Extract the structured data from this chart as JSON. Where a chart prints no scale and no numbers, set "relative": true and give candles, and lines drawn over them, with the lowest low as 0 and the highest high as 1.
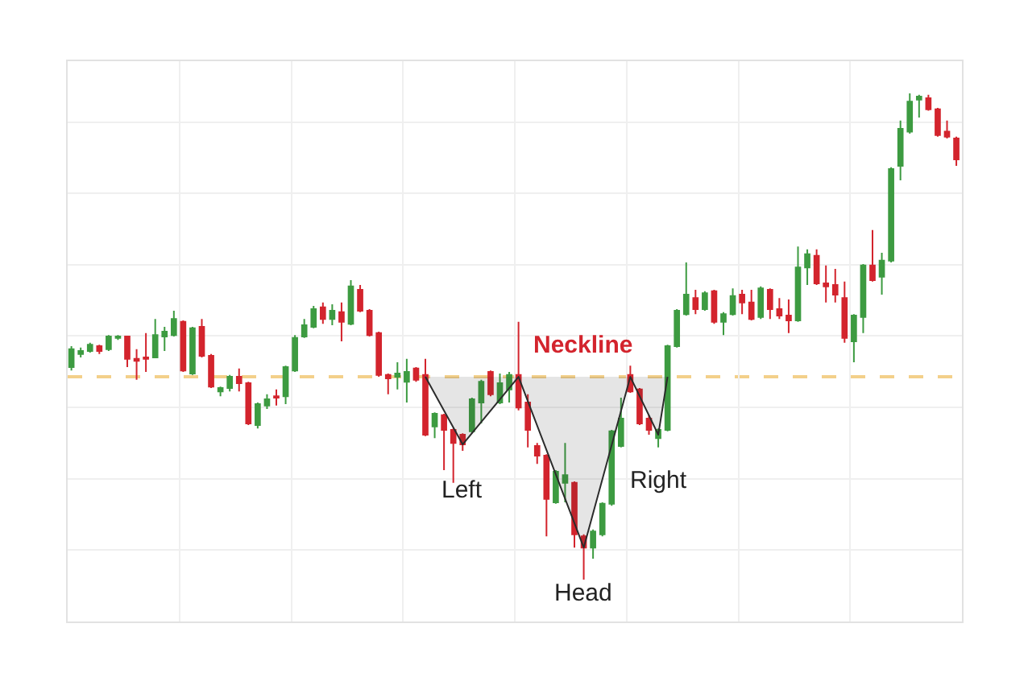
{
  "chart_data": {
    "type": "candlestick",
    "relative": true,
    "categories": [
      null,
      null,
      null,
      null,
      null,
      null,
      null,
      null,
      null,
      null,
      null,
      null,
      null,
      null,
      null,
      null,
      null,
      null,
      null,
      null,
      null,
      null,
      null,
      null,
      null,
      null,
      null,
      null,
      null,
      null,
      null,
      null,
      null,
      null,
      null,
      null,
      null,
      null,
      null,
      null,
      null,
      null,
      null,
      null,
      null,
      null,
      null,
      null,
      null,
      null,
      null,
      null,
      null,
      null,
      null,
      null,
      null,
      null,
      null,
      null,
      null,
      null,
      null,
      null,
      null,
      null,
      null,
      null,
      null,
      null,
      null,
      null,
      null,
      null,
      null,
      null,
      null,
      null,
      null,
      null,
      null,
      null,
      null,
      null,
      null,
      null,
      null,
      null,
      null,
      null,
      null,
      null,
      null,
      null,
      null,
      null
    ],
    "ohlc": [
      [
        0.437,
        0.48,
        0.43,
        0.474
      ],
      [
        0.464,
        0.477,
        0.457,
        0.47
      ],
      [
        0.47,
        0.487,
        0.467,
        0.483
      ],
      [
        0.48,
        0.483,
        0.464,
        0.47
      ],
      [
        0.474,
        0.503,
        0.47,
        0.5
      ],
      [
        0.497,
        0.503,
        0.493,
        0.5
      ],
      [
        0.5,
        0.5,
        0.437,
        0.454
      ],
      [
        0.454,
        0.474,
        0.411,
        0.45
      ],
      [
        0.457,
        0.507,
        0.427,
        0.454
      ],
      [
        0.457,
        0.536,
        0.457,
        0.503
      ],
      [
        0.5,
        0.52,
        0.47,
        0.51
      ],
      [
        0.503,
        0.553,
        0.5,
        0.536
      ],
      [
        0.53,
        0.533,
        0.427,
        0.43
      ],
      [
        0.424,
        0.52,
        0.421,
        0.517
      ],
      [
        0.52,
        0.536,
        0.457,
        0.46
      ],
      [
        0.46,
        0.464,
        0.394,
        0.397
      ],
      [
        0.387,
        0.397,
        0.377,
        0.394
      ],
      [
        0.394,
        0.421,
        0.387,
        0.417
      ],
      [
        0.417,
        0.434,
        0.387,
        0.404
      ],
      [
        0.404,
        0.407,
        0.318,
        0.321
      ],
      [
        0.318,
        0.364,
        0.311,
        0.361
      ],
      [
        0.358,
        0.381,
        0.351,
        0.371
      ],
      [
        0.377,
        0.391,
        0.358,
        0.374
      ],
      [
        0.377,
        0.44,
        0.361,
        0.437
      ],
      [
        0.43,
        0.503,
        0.427,
        0.497
      ],
      [
        0.5,
        0.536,
        0.497,
        0.523
      ],
      [
        0.52,
        0.563,
        0.517,
        0.556
      ],
      [
        0.56,
        0.57,
        0.526,
        0.536
      ],
      [
        0.536,
        0.566,
        0.523,
        0.553
      ],
      [
        0.55,
        0.57,
        0.49,
        0.53
      ],
      [
        0.526,
        0.616,
        0.523,
        0.603
      ],
      [
        0.596,
        0.606,
        0.55,
        0.553
      ],
      [
        0.553,
        0.556,
        0.5,
        0.503
      ],
      [
        0.507,
        0.51,
        0.417,
        0.421
      ],
      [
        0.421,
        0.424,
        0.381,
        0.414
      ],
      [
        0.417,
        0.447,
        0.391,
        0.424
      ],
      [
        0.407,
        0.454,
        0.364,
        0.427
      ],
      [
        0.434,
        0.437,
        0.407,
        0.411
      ],
      [
        0.421,
        0.454,
        0.295,
        0.298
      ],
      [
        0.315,
        0.344,
        0.291,
        0.341
      ],
      [
        0.338,
        0.341,
        0.225,
        0.308
      ],
      [
        0.308,
        0.311,
        0.199,
        0.281
      ],
      [
        0.298,
        0.301,
        0.265,
        0.278
      ],
      [
        0.305,
        0.374,
        0.301,
        0.371
      ],
      [
        0.364,
        0.411,
        0.321,
        0.407
      ],
      [
        0.427,
        0.43,
        0.377,
        0.381
      ],
      [
        0.364,
        0.424,
        0.361,
        0.404
      ],
      [
        0.391,
        0.427,
        0.364,
        0.421
      ],
      [
        0.421,
        0.53,
        0.348,
        0.354
      ],
      [
        0.364,
        0.381,
        0.272,
        0.308
      ],
      [
        0.275,
        0.281,
        0.238,
        0.255
      ],
      [
        0.255,
        0.258,
        0.089,
        0.166
      ],
      [
        0.159,
        0.225,
        0.156,
        0.222
      ],
      [
        0.199,
        0.281,
        0.159,
        0.215
      ],
      [
        0.199,
        0.202,
        0.066,
        0.093
      ],
      [
        0.089,
        0.093,
        0.0,
        0.066
      ],
      [
        0.066,
        0.103,
        0.043,
        0.099
      ],
      [
        0.093,
        0.159,
        0.089,
        0.156
      ],
      [
        0.156,
        0.308,
        0.152,
        0.305
      ],
      [
        0.275,
        0.374,
        0.272,
        0.331
      ],
      [
        0.421,
        0.44,
        0.384,
        0.387
      ],
      [
        0.391,
        0.394,
        0.318,
        0.321
      ],
      [
        0.331,
        0.338,
        0.298,
        0.308
      ],
      [
        0.291,
        0.311,
        0.272,
        0.308
      ],
      [
        0.308,
        0.483,
        0.305,
        0.48
      ],
      [
        0.48,
        0.556,
        0.477,
        0.553
      ],
      [
        0.546,
        0.652,
        0.543,
        0.586
      ],
      [
        0.579,
        0.596,
        0.546,
        0.556
      ],
      [
        0.556,
        0.593,
        0.553,
        0.589
      ],
      [
        0.593,
        0.596,
        0.526,
        0.53
      ],
      [
        0.53,
        0.55,
        0.503,
        0.546
      ],
      [
        0.546,
        0.599,
        0.543,
        0.583
      ],
      [
        0.586,
        0.596,
        0.546,
        0.57
      ],
      [
        0.57,
        0.596,
        0.533,
        0.536
      ],
      [
        0.54,
        0.603,
        0.536,
        0.599
      ],
      [
        0.596,
        0.599,
        0.536,
        0.556
      ],
      [
        0.556,
        0.579,
        0.536,
        0.543
      ],
      [
        0.543,
        0.576,
        0.507,
        0.533
      ],
      [
        0.533,
        0.685,
        0.53,
        0.642
      ],
      [
        0.642,
        0.679,
        0.606,
        0.669
      ],
      [
        0.666,
        0.679,
        0.606,
        0.609
      ],
      [
        0.609,
        0.646,
        0.57,
        0.603
      ],
      [
        0.606,
        0.639,
        0.57,
        0.586
      ],
      [
        0.579,
        0.613,
        0.487,
        0.497
      ],
      [
        0.49,
        0.546,
        0.447,
        0.543
      ],
      [
        0.54,
        0.649,
        0.507,
        0.646
      ],
      [
        0.646,
        0.719,
        0.613,
        0.616
      ],
      [
        0.623,
        0.672,
        0.586,
        0.656
      ],
      [
        0.656,
        0.848,
        0.652,
        0.844
      ],
      [
        0.851,
        0.944,
        0.821,
        0.927
      ],
      [
        0.921,
        1.0,
        0.917,
        0.983
      ],
      [
        0.987,
        0.997,
        0.95,
        0.993
      ],
      [
        0.99,
        0.997,
        0.964,
        0.967
      ],
      [
        0.967,
        0.97,
        0.911,
        0.914
      ],
      [
        0.921,
        0.944,
        0.907,
        0.911
      ],
      [
        0.907,
        0.911,
        0.851,
        0.864
      ]
    ],
    "colors": [
      "#3d9b41",
      "#3d9b41",
      "#3d9b41",
      "#d3242d",
      "#3d9b41",
      "#3d9b41",
      "#d3242d",
      "#d3242d",
      "#d3242d",
      "#3d9b41",
      "#3d9b41",
      "#3d9b41",
      "#d3242d",
      "#3d9b41",
      "#d3242d",
      "#d3242d",
      "#3d9b41",
      "#3d9b41",
      "#d3242d",
      "#d3242d",
      "#3d9b41",
      "#3d9b41",
      "#d3242d",
      "#3d9b41",
      "#3d9b41",
      "#3d9b41",
      "#3d9b41",
      "#d3242d",
      "#3d9b41",
      "#d3242d",
      "#3d9b41",
      "#d3242d",
      "#d3242d",
      "#d3242d",
      "#d3242d",
      "#3d9b41",
      "#3d9b41",
      "#d3242d",
      "#d3242d",
      "#3d9b41",
      "#d3242d",
      "#d3242d",
      "#d3242d",
      "#3d9b41",
      "#3d9b41",
      "#d3242d",
      "#3d9b41",
      "#3d9b41",
      "#d3242d",
      "#d3242d",
      "#d3242d",
      "#d3242d",
      "#3d9b41",
      "#3d9b41",
      "#d3242d",
      "#d3242d",
      "#3d9b41",
      "#3d9b41",
      "#3d9b41",
      "#3d9b41",
      "#d3242d",
      "#d3242d",
      "#d3242d",
      "#3d9b41",
      "#3d9b41",
      "#3d9b41",
      "#3d9b41",
      "#d3242d",
      "#3d9b41",
      "#d3242d",
      "#3d9b41",
      "#3d9b41",
      "#d3242d",
      "#d3242d",
      "#3d9b41",
      "#d3242d",
      "#d3242d",
      "#d3242d",
      "#3d9b41",
      "#3d9b41",
      "#d3242d",
      "#d3242d",
      "#d3242d",
      "#d3242d",
      "#3d9b41",
      "#3d9b41",
      "#d3242d",
      "#3d9b41",
      "#3d9b41",
      "#3d9b41",
      "#3d9b41",
      "#3d9b41",
      "#d3242d",
      "#d3242d",
      "#d3242d",
      "#d3242d"
    ],
    "series": [
      {
        "type": "line",
        "color": "#2b2b2b",
        "values": [
          null,
          null,
          null,
          null,
          null,
          null,
          null,
          null,
          null,
          null,
          null,
          null,
          null,
          null,
          null,
          null,
          null,
          null,
          null,
          null,
          null,
          null,
          null,
          null,
          null,
          null,
          null,
          null,
          null,
          null,
          null,
          null,
          null,
          null,
          null,
          null,
          null,
          null,
          0.417,
          null,
          null,
          null,
          0.278,
          null,
          null,
          null,
          null,
          null,
          0.417,
          null,
          null,
          null,
          null,
          null,
          null,
          0.066,
          null,
          null,
          null,
          null,
          0.417,
          null,
          null,
          0.298,
          0.417,
          null,
          null,
          null,
          null,
          null,
          null,
          null,
          null,
          null,
          null,
          null,
          null,
          null,
          null,
          null,
          null,
          null,
          null,
          null,
          null,
          null,
          null,
          null,
          null,
          null,
          null,
          null,
          null,
          null,
          null,
          null
        ]
      }
    ],
    "ref_lines": [
      {
        "axis": "y",
        "value": 0.417,
        "label": "Neckline",
        "color": "#f3d08a",
        "line_style": "dashed"
      }
    ],
    "annotations": [
      "Left",
      "Head",
      "Right"
    ],
    "grid": true
  }
}
